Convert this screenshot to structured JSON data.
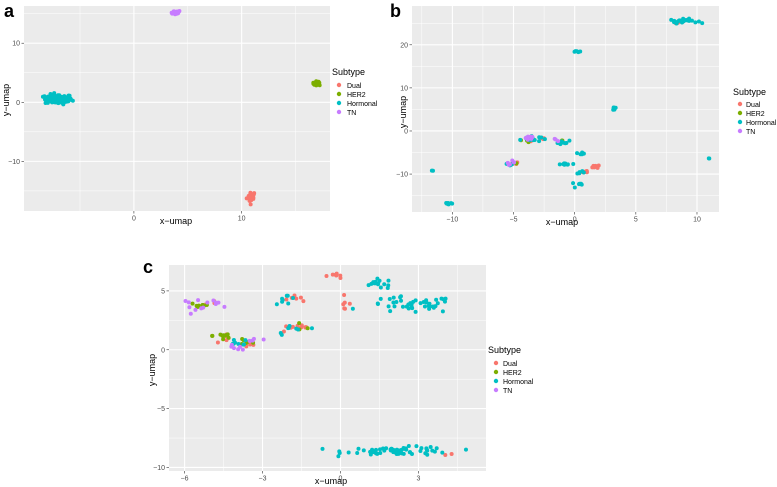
{
  "colors": {
    "Dual": "#F8766D",
    "HER2": "#7CAE00",
    "Hormonal": "#00BFC4",
    "TN": "#C77CFF",
    "panel_bg": "#EBEBEB",
    "grid": "#FFFFFF"
  },
  "chart_data": [
    {
      "type": "scatter",
      "panel": "a",
      "xlabel": "x−umap",
      "ylabel": "y−umap",
      "xlim": [
        -10.2,
        18.2
      ],
      "ylim": [
        -18.4,
        16.3
      ],
      "xticks": [
        0,
        10
      ],
      "xtick_labels": [
        "0",
        "10"
      ],
      "yticks": [
        -10,
        0,
        10
      ],
      "ytick_labels": [
        "−10",
        "0",
        "10"
      ],
      "legend_title": "Subtype",
      "legend_entries": [
        "Dual",
        "HER2",
        "Hormonal",
        "TN"
      ],
      "series": [
        {
          "name": "Dual",
          "clusters": [
            {
              "cx": 10.9,
              "cy": -16.0,
              "sx": 0.3,
              "sy": 0.7,
              "n": 20
            }
          ]
        },
        {
          "name": "HER2",
          "clusters": [
            {
              "cx": 17.0,
              "cy": 3.2,
              "sx": 0.3,
              "sy": 0.25,
              "n": 15
            }
          ]
        },
        {
          "name": "Hormonal",
          "clusters": [
            {
              "cx": -7.0,
              "cy": 0.5,
              "sx": 0.9,
              "sy": 0.6,
              "n": 90
            }
          ]
        },
        {
          "name": "TN",
          "clusters": [
            {
              "cx": 3.8,
              "cy": 15.2,
              "sx": 0.4,
              "sy": 0.25,
              "n": 20
            }
          ]
        }
      ]
    },
    {
      "type": "scatter",
      "panel": "b",
      "xlabel": "x−umap",
      "ylabel": "y−umap",
      "xlim": [
        -13.3,
        11.8
      ],
      "ylim": [
        -18.8,
        29.0
      ],
      "xticks": [
        -10,
        -5,
        0,
        5,
        10
      ],
      "xtick_labels": [
        "−10",
        "−5",
        "0",
        "5",
        "10"
      ],
      "yticks": [
        -10,
        0,
        10,
        20
      ],
      "ytick_labels": [
        "−10",
        "0",
        "10",
        "20"
      ],
      "legend_title": "Subtype",
      "legend_entries": [
        "Dual",
        "HER2",
        "Hormonal",
        "TN"
      ],
      "series": [
        {
          "name": "Dual",
          "clusters": [
            {
              "cx": 8.5,
              "cy": 25.3,
              "sx": 0.4,
              "sy": 0.3,
              "n": 5
            },
            {
              "cx": -2.5,
              "cy": -1.8,
              "sx": 0.4,
              "sy": 0.3,
              "n": 5
            },
            {
              "cx": 1.9,
              "cy": -8.2,
              "sx": 0.3,
              "sy": 0.4,
              "n": 6
            },
            {
              "cx": 0.9,
              "cy": -9.3,
              "sx": 0.3,
              "sy": 0.3,
              "n": 4
            },
            {
              "cx": -5.0,
              "cy": -7.6,
              "sx": 0.3,
              "sy": 0.3,
              "n": 3
            },
            {
              "cx": -3.6,
              "cy": -2.2,
              "sx": 0.3,
              "sy": 0.3,
              "n": 3
            }
          ]
        },
        {
          "name": "HER2",
          "clusters": [
            {
              "cx": -5.0,
              "cy": -7.5,
              "sx": 0.2,
              "sy": 0.2,
              "n": 3
            },
            {
              "cx": -3.9,
              "cy": -2.3,
              "sx": 0.2,
              "sy": 0.2,
              "n": 4
            },
            {
              "cx": -1.1,
              "cy": -2.2,
              "sx": 0.2,
              "sy": 0.2,
              "n": 2
            }
          ]
        },
        {
          "name": "Hormonal",
          "clusters": [
            {
              "cx": 8.9,
              "cy": 25.5,
              "sx": 0.8,
              "sy": 0.35,
              "n": 25
            },
            {
              "cx": 0.2,
              "cy": 18.5,
              "sx": 0.2,
              "sy": 0.2,
              "n": 5
            },
            {
              "cx": 3.2,
              "cy": 5.2,
              "sx": 0.2,
              "sy": 0.4,
              "n": 6
            },
            {
              "cx": -3.6,
              "cy": -1.8,
              "sx": 0.6,
              "sy": 0.5,
              "n": 18
            },
            {
              "cx": -1.0,
              "cy": -2.6,
              "sx": 0.4,
              "sy": 0.3,
              "n": 10
            },
            {
              "cx": 0.6,
              "cy": -5.2,
              "sx": 0.2,
              "sy": 0.3,
              "n": 5
            },
            {
              "cx": -0.7,
              "cy": -7.7,
              "sx": 0.5,
              "sy": 0.15,
              "n": 8
            },
            {
              "cx": 0.5,
              "cy": -9.8,
              "sx": 0.2,
              "sy": 0.3,
              "n": 5
            },
            {
              "cx": 0.3,
              "cy": -12.4,
              "sx": 0.4,
              "sy": 0.3,
              "n": 6
            },
            {
              "cx": -11.6,
              "cy": -9.2,
              "sx": 0.1,
              "sy": 0.1,
              "n": 2
            },
            {
              "cx": -10.3,
              "cy": -16.8,
              "sx": 0.3,
              "sy": 0.25,
              "n": 7
            },
            {
              "cx": 11.0,
              "cy": -6.3,
              "sx": 0.1,
              "sy": 0.1,
              "n": 2
            },
            {
              "cx": -5.2,
              "cy": -7.9,
              "sx": 0.3,
              "sy": 0.3,
              "n": 4
            }
          ]
        },
        {
          "name": "TN",
          "clusters": [
            {
              "cx": -5.3,
              "cy": -7.3,
              "sx": 0.3,
              "sy": 0.3,
              "n": 6
            },
            {
              "cx": -3.5,
              "cy": -1.6,
              "sx": 0.5,
              "sy": 0.3,
              "n": 6
            },
            {
              "cx": -1.5,
              "cy": -2.1,
              "sx": 0.3,
              "sy": 0.2,
              "n": 3
            }
          ]
        }
      ]
    },
    {
      "type": "scatter",
      "panel": "c",
      "xlabel": "x−umap",
      "ylabel": "y−umap",
      "xlim": [
        -6.6,
        5.6
      ],
      "ylim": [
        -10.3,
        7.2
      ],
      "xticks": [
        -6,
        -3,
        0,
        3
      ],
      "xtick_labels": [
        "−6",
        "−3",
        "0",
        "3"
      ],
      "yticks": [
        -10,
        -5,
        0,
        5
      ],
      "ytick_labels": [
        "−10",
        "−5",
        "0",
        "5"
      ],
      "legend_title": "Subtype",
      "legend_entries": [
        "Dual",
        "HER2",
        "Hormonal",
        "TN"
      ],
      "series": [
        {
          "name": "Dual",
          "clusters": [
            {
              "cx": -0.2,
              "cy": 6.3,
              "sx": 0.3,
              "sy": 0.2,
              "n": 7
            },
            {
              "cx": 0.1,
              "cy": 4.0,
              "sx": 0.2,
              "sy": 0.4,
              "n": 6
            },
            {
              "cx": -1.9,
              "cy": 4.4,
              "sx": 0.3,
              "sy": 0.15,
              "n": 6
            },
            {
              "cx": -1.6,
              "cy": 1.8,
              "sx": 0.6,
              "sy": 0.2,
              "n": 10
            },
            {
              "cx": -4.3,
              "cy": 1.0,
              "sx": 0.3,
              "sy": 0.3,
              "n": 5
            },
            {
              "cx": -5.0,
              "cy": 4.0,
              "sx": 0.2,
              "sy": 0.2,
              "n": 3
            },
            {
              "cx": -3.5,
              "cy": 0.3,
              "sx": 0.2,
              "sy": 0.2,
              "n": 3
            },
            {
              "cx": 4.2,
              "cy": -8.9,
              "sx": 0.15,
              "sy": 0.1,
              "n": 2
            }
          ]
        },
        {
          "name": "HER2",
          "clusters": [
            {
              "cx": -5.4,
              "cy": 3.8,
              "sx": 0.3,
              "sy": 0.2,
              "n": 10
            },
            {
              "cx": -4.5,
              "cy": 1.2,
              "sx": 0.3,
              "sy": 0.4,
              "n": 10
            },
            {
              "cx": -3.6,
              "cy": 0.7,
              "sx": 0.3,
              "sy": 0.3,
              "n": 6
            },
            {
              "cx": -1.5,
              "cy": 1.8,
              "sx": 0.3,
              "sy": 0.2,
              "n": 3
            }
          ]
        },
        {
          "name": "Hormonal",
          "clusters": [
            {
              "cx": 1.5,
              "cy": 5.6,
              "sx": 0.5,
              "sy": 0.3,
              "n": 15
            },
            {
              "cx": 2.7,
              "cy": 3.8,
              "sx": 1.2,
              "sy": 0.5,
              "n": 45
            },
            {
              "cx": 2.3,
              "cy": -8.6,
              "sx": 1.5,
              "sy": 0.25,
              "n": 65
            },
            {
              "cx": -2.1,
              "cy": 4.3,
              "sx": 0.3,
              "sy": 0.3,
              "n": 8
            },
            {
              "cx": -1.7,
              "cy": 1.7,
              "sx": 0.6,
              "sy": 0.3,
              "n": 8
            },
            {
              "cx": -4.2,
              "cy": 0.6,
              "sx": 0.3,
              "sy": 0.3,
              "n": 5
            },
            {
              "cx": -3.7,
              "cy": 0.6,
              "sx": 0.2,
              "sy": 0.2,
              "n": 3
            }
          ]
        },
        {
          "name": "TN",
          "clusters": [
            {
              "cx": -5.6,
              "cy": 3.9,
              "sx": 0.4,
              "sy": 0.3,
              "n": 8
            },
            {
              "cx": -4.8,
              "cy": 4.0,
              "sx": 0.2,
              "sy": 0.3,
              "n": 6
            },
            {
              "cx": -4.0,
              "cy": 0.1,
              "sx": 0.3,
              "sy": 0.2,
              "n": 6
            },
            {
              "cx": -3.4,
              "cy": 0.7,
              "sx": 0.2,
              "sy": 0.3,
              "n": 4
            }
          ]
        }
      ]
    }
  ]
}
